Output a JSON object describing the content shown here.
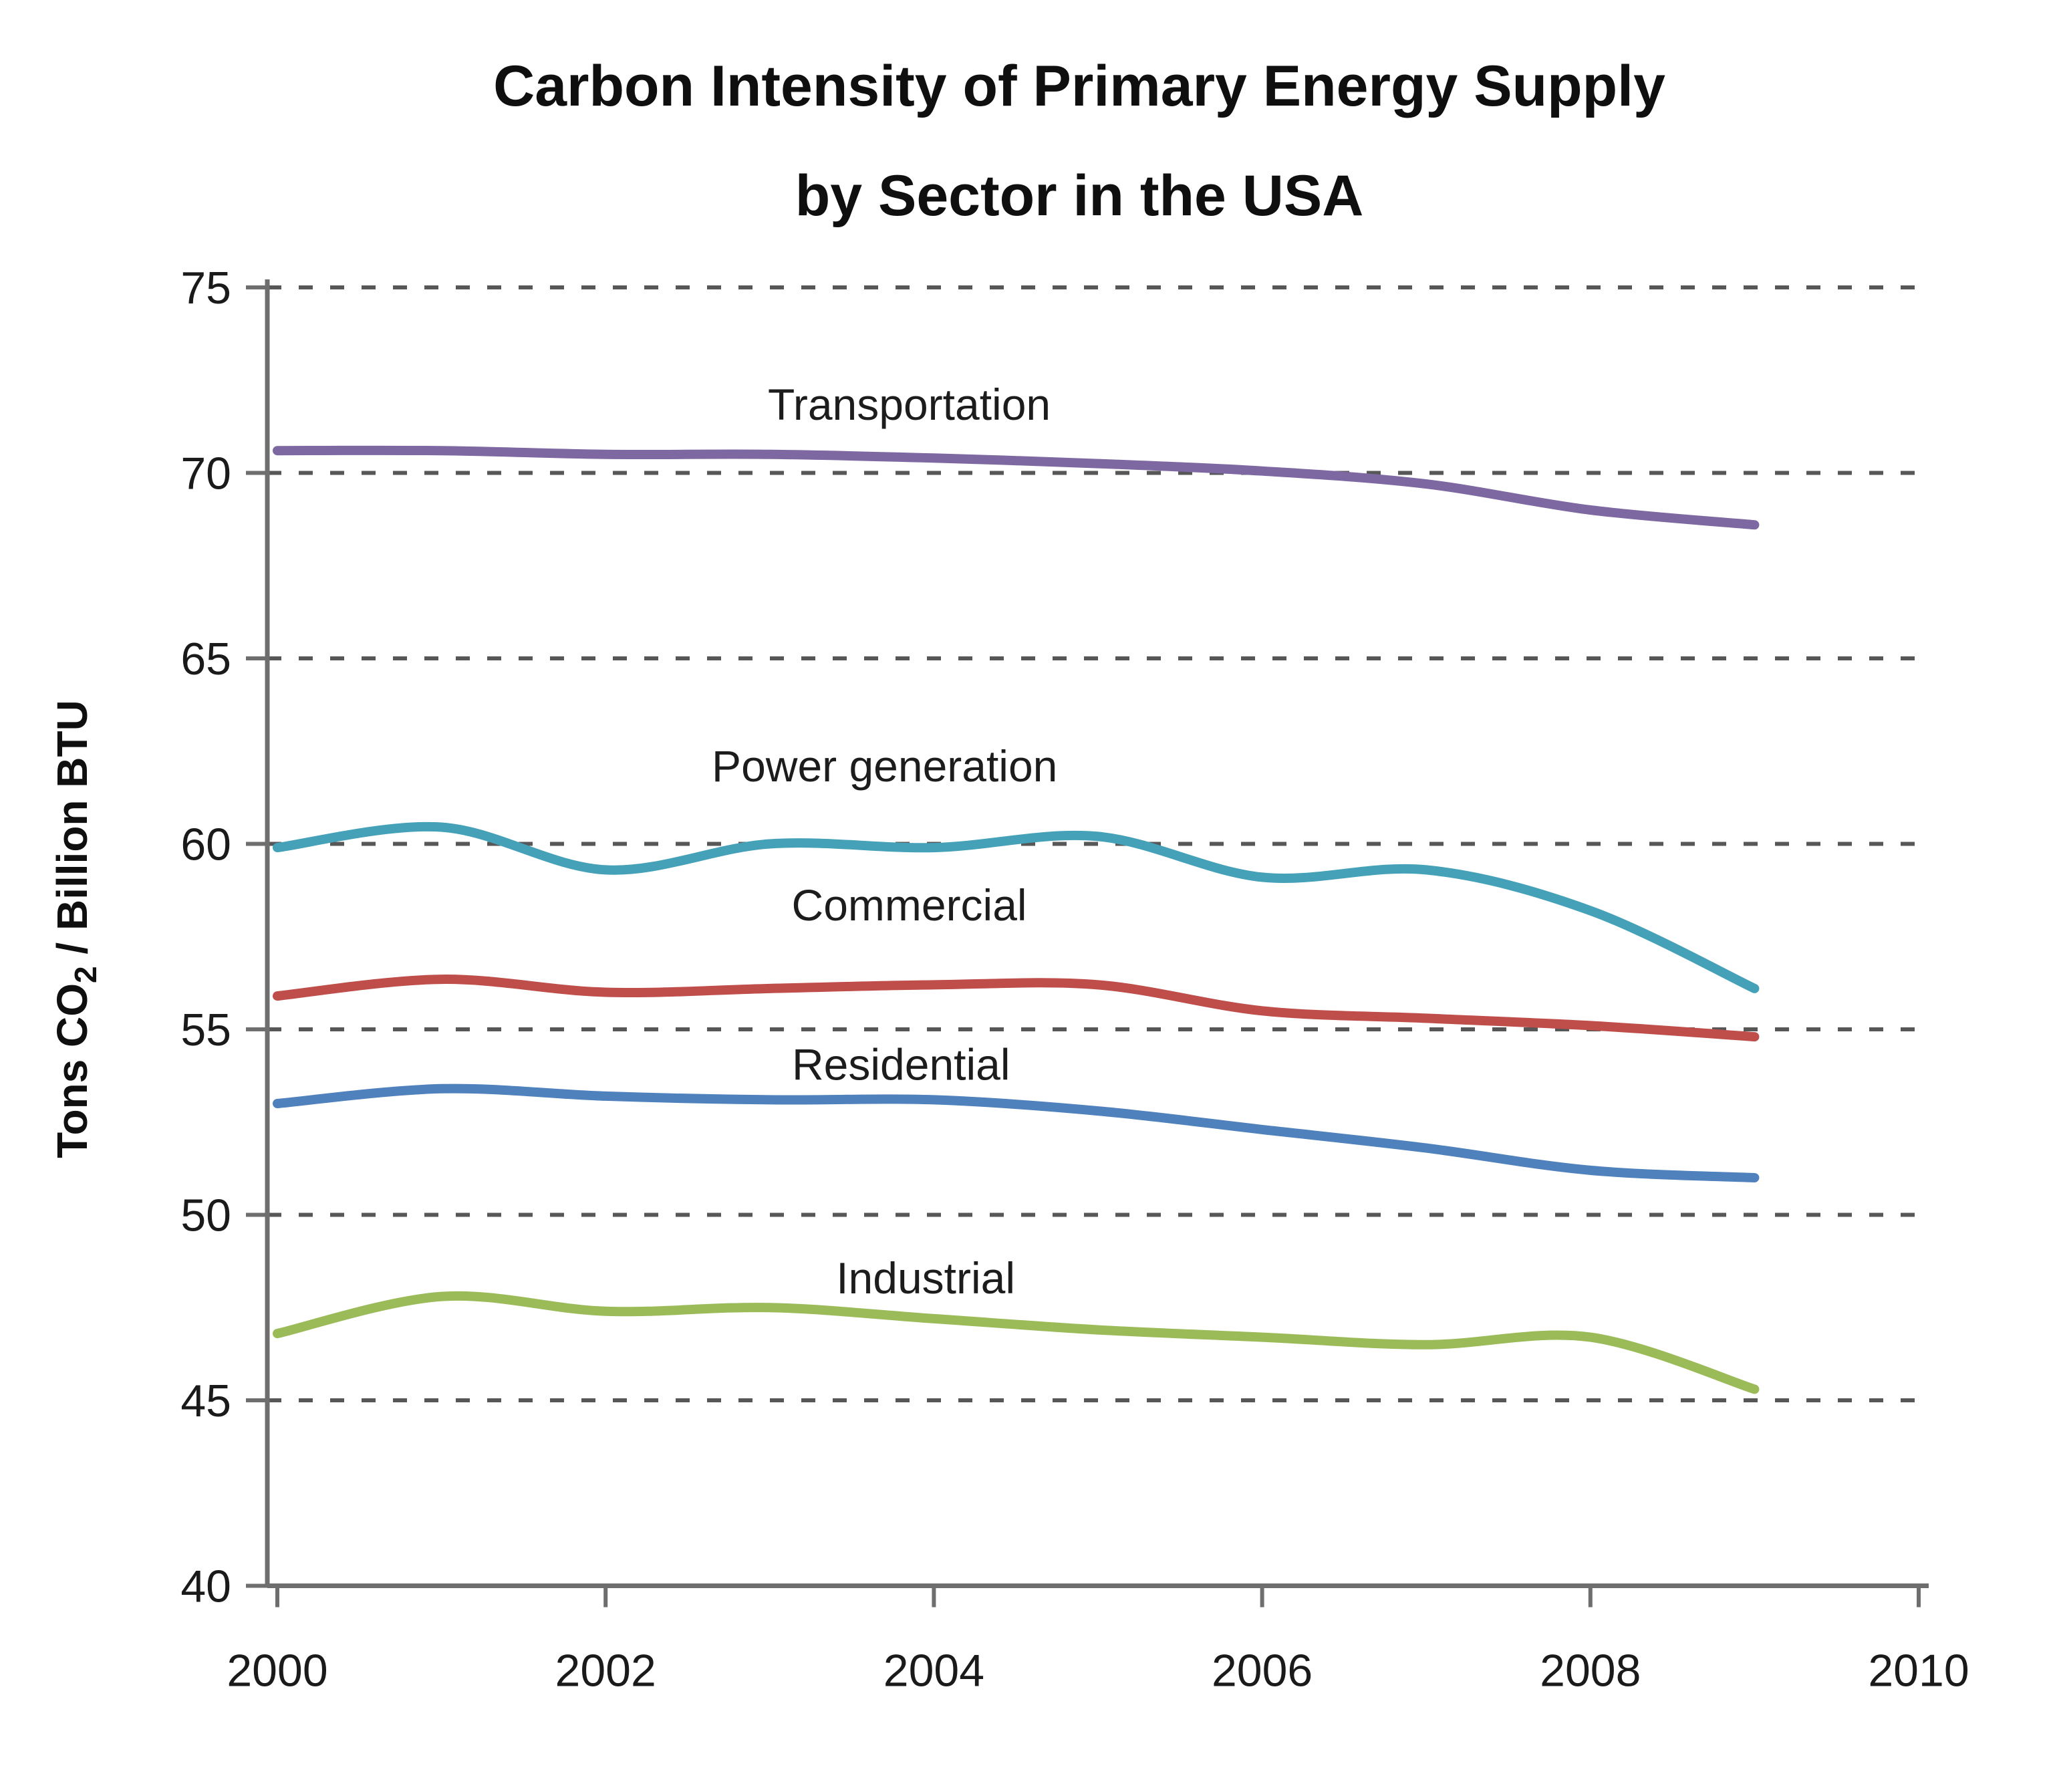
{
  "chart_data": {
    "type": "line",
    "title": "Carbon Intensity of Primary Energy Supply by Sector in the USA",
    "title_lines": [
      "Carbon Intensity of Primary Energy Supply",
      "by Sector in the USA"
    ],
    "ylabel": "Tons CO2 / Billion BTU",
    "ylabel_parts": [
      "Tons CO",
      "2",
      " / Billion BTU"
    ],
    "xlabel": "",
    "xlim": [
      2000,
      2010
    ],
    "ylim": [
      40,
      75
    ],
    "xticks": [
      2000,
      2002,
      2004,
      2006,
      2008,
      2010
    ],
    "yticks": [
      75,
      70,
      65,
      60,
      55,
      50,
      45,
      40
    ],
    "grid": "horizontal-dashed",
    "legend_position": "inline-labels",
    "grid_color": "#575757",
    "axis_color": "#6e6e6e",
    "text_color": "#1a1a1a",
    "x": [
      2000,
      2001,
      2002,
      2003,
      2004,
      2005,
      2006,
      2007,
      2008,
      2009
    ],
    "series": [
      {
        "name": "Transportation",
        "color": "#7d68a2",
        "values": [
          70.6,
          70.6,
          70.5,
          70.5,
          70.4,
          70.25,
          70.05,
          69.7,
          69.0,
          68.6
        ],
        "label_anchor": {
          "x": 2003.85,
          "y": 71.85
        }
      },
      {
        "name": "Power generation",
        "color": "#44a1b8",
        "values": [
          59.9,
          60.45,
          59.3,
          60.0,
          59.9,
          60.2,
          59.1,
          59.3,
          58.2,
          56.1
        ],
        "label_anchor": {
          "x": 2003.7,
          "y": 62.1
        }
      },
      {
        "name": "Commercial",
        "color": "#bf4e4b",
        "values": [
          55.9,
          56.35,
          56.0,
          56.1,
          56.2,
          56.2,
          55.5,
          55.3,
          55.1,
          54.8
        ],
        "label_anchor": {
          "x": 2003.85,
          "y": 58.35
        }
      },
      {
        "name": "Residential",
        "color": "#4f81bd",
        "values": [
          53.0,
          53.4,
          53.2,
          53.1,
          53.1,
          52.8,
          52.3,
          51.8,
          51.2,
          51.0
        ],
        "label_anchor": {
          "x": 2003.8,
          "y": 54.05
        }
      },
      {
        "name": "Industrial",
        "color": "#9bbb59",
        "values": [
          46.8,
          47.8,
          47.4,
          47.5,
          47.2,
          46.9,
          46.7,
          46.5,
          46.7,
          45.3
        ],
        "label_anchor": {
          "x": 2003.95,
          "y": 48.3
        }
      }
    ]
  }
}
